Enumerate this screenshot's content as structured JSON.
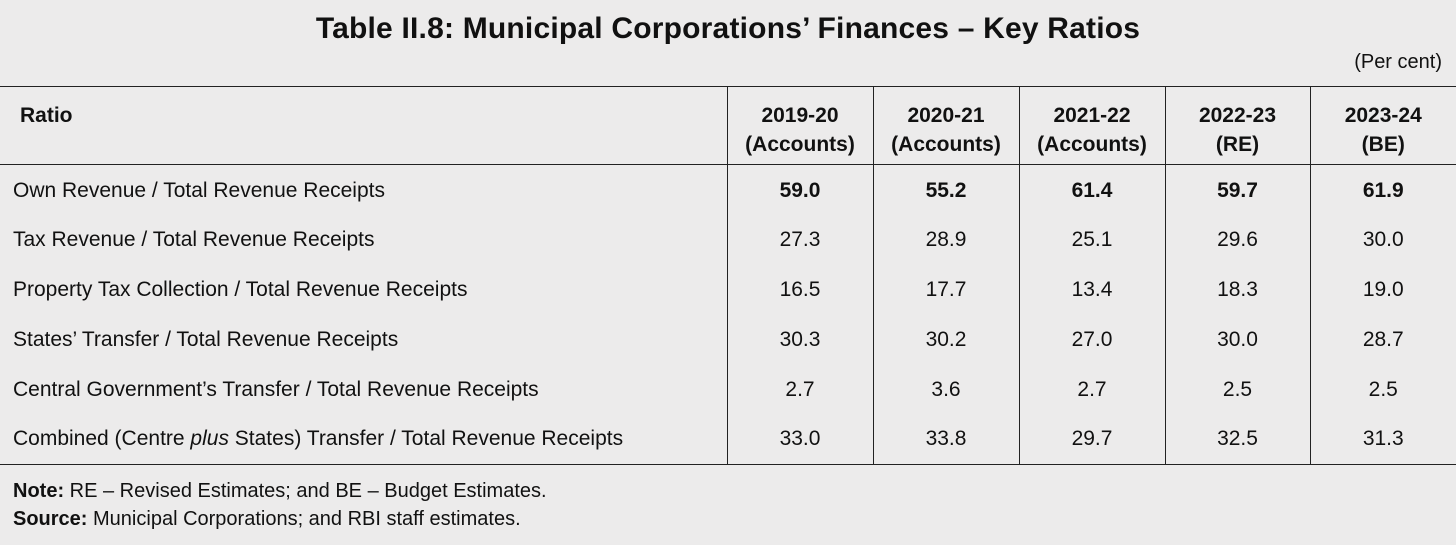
{
  "title": "Table II.8: Municipal Corporations’ Finances – Key Ratios",
  "unit": "(Per cent)",
  "table": {
    "header_label": "Ratio",
    "columns": [
      {
        "line1": "2019-20",
        "line2": "(Accounts)"
      },
      {
        "line1": "2020-21",
        "line2": "(Accounts)"
      },
      {
        "line1": "2021-22",
        "line2": "(Accounts)"
      },
      {
        "line1": "2022-23",
        "line2": "(RE)"
      },
      {
        "line1": "2023-24",
        "line2": "(BE)"
      }
    ],
    "rows": [
      {
        "label_pre": "Own Revenue / Total Revenue Receipts",
        "label_em": "",
        "label_post": "",
        "values": [
          "59.0",
          "55.2",
          "61.4",
          "59.7",
          "61.9"
        ],
        "bold": true
      },
      {
        "label_pre": "Tax Revenue / Total Revenue Receipts",
        "label_em": "",
        "label_post": "",
        "values": [
          "27.3",
          "28.9",
          "25.1",
          "29.6",
          "30.0"
        ],
        "bold": false
      },
      {
        "label_pre": "Property Tax Collection / Total Revenue Receipts",
        "label_em": "",
        "label_post": "",
        "values": [
          "16.5",
          "17.7",
          "13.4",
          "18.3",
          "19.0"
        ],
        "bold": false
      },
      {
        "label_pre": "States’ Transfer / Total Revenue Receipts",
        "label_em": "",
        "label_post": "",
        "values": [
          "30.3",
          "30.2",
          "27.0",
          "30.0",
          "28.7"
        ],
        "bold": false
      },
      {
        "label_pre": "Central Government’s Transfer / Total Revenue Receipts",
        "label_em": "",
        "label_post": "",
        "values": [
          "2.7",
          "3.6",
          "2.7",
          "2.5",
          "2.5"
        ],
        "bold": false
      },
      {
        "label_pre": "Combined (Centre ",
        "label_em": "plus",
        "label_post": " States) Transfer / Total Revenue Receipts",
        "values": [
          "33.0",
          "33.8",
          "29.7",
          "32.5",
          "31.3"
        ],
        "bold": false
      }
    ]
  },
  "notes": {
    "note_label": "Note:",
    "note_text": " RE – Revised Estimates; and BE – Budget Estimates.",
    "source_label": "Source:",
    "source_text": " Municipal Corporations; and RBI staff estimates."
  }
}
